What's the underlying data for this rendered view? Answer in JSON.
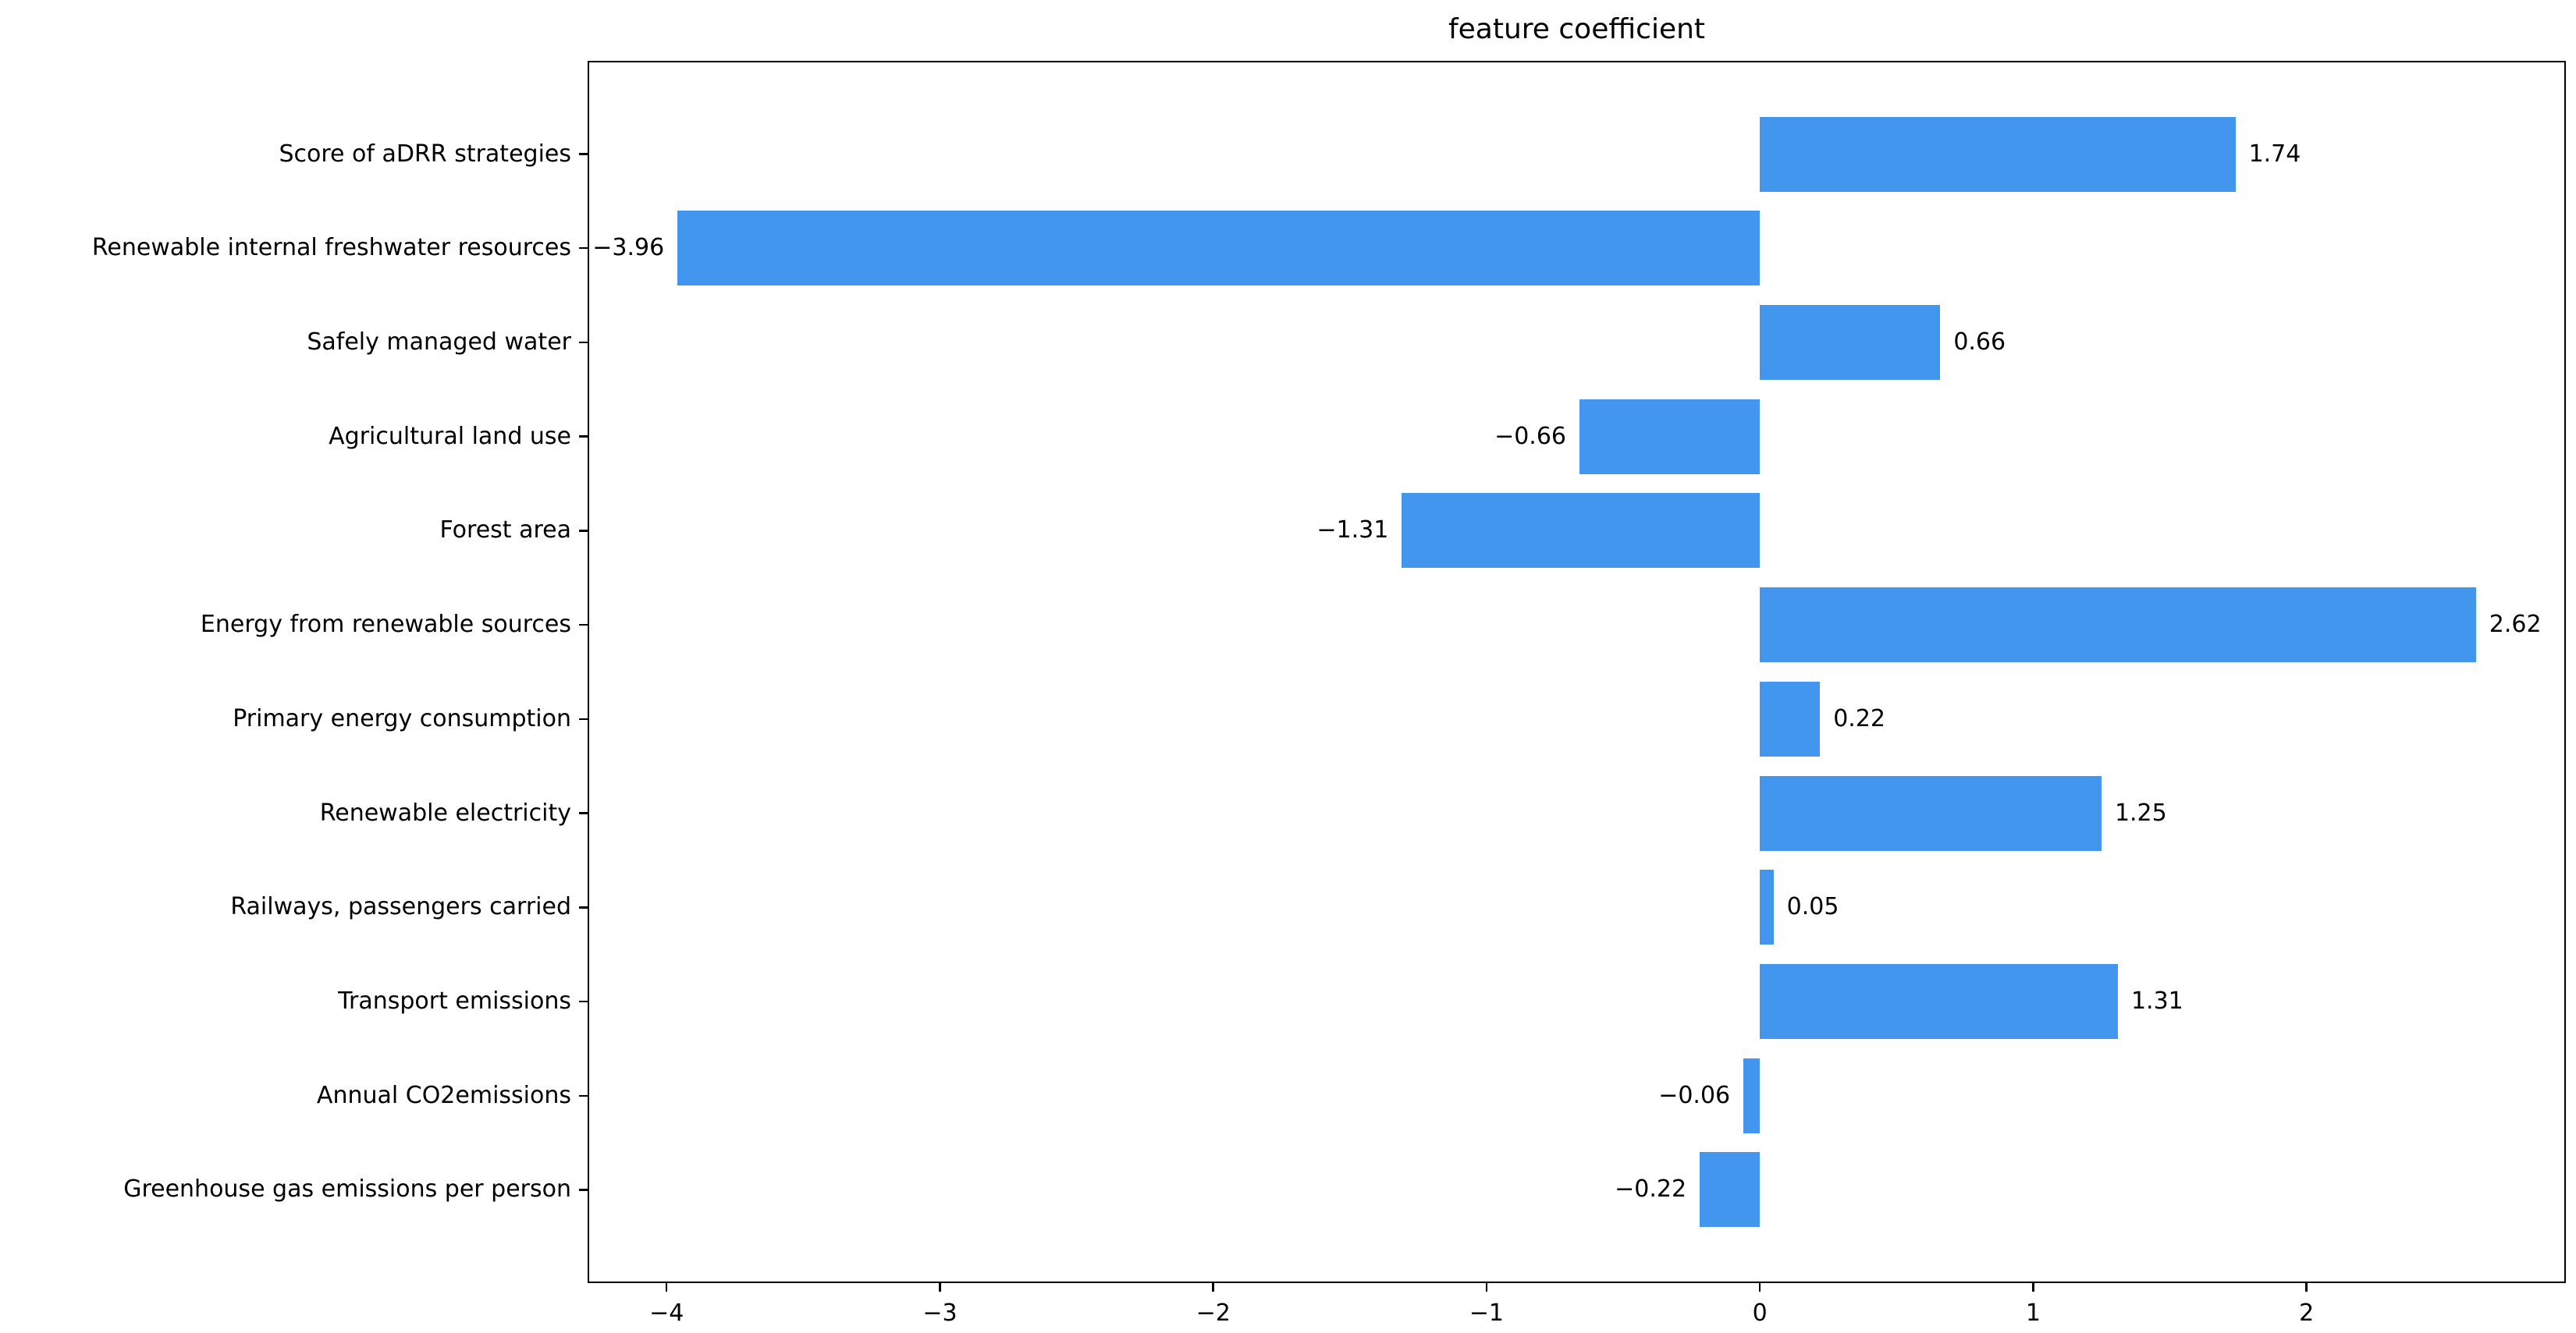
{
  "title": "feature coefficient",
  "chart_data": {
    "type": "bar",
    "orientation": "horizontal",
    "title": "feature coefficient",
    "categories": [
      "Score of aDRR strategies",
      "Renewable internal freshwater resources",
      "Safely managed water",
      "Agricultural land use",
      "Forest area",
      "Energy from renewable sources",
      "Primary energy consumption",
      "Renewable electricity",
      "Railways, passengers carried",
      "Transport emissions",
      "Annual CO2emissions",
      "Greenhouse gas emissions per person"
    ],
    "values": [
      1.74,
      -3.96,
      0.66,
      -0.66,
      -1.31,
      2.62,
      0.22,
      1.25,
      0.05,
      1.31,
      -0.06,
      -0.22
    ],
    "value_labels": [
      "1.74",
      "−3.96",
      "0.66",
      "−0.66",
      "−1.31",
      "2.62",
      "0.22",
      "1.25",
      "0.05",
      "1.31",
      "−0.06",
      "−0.22"
    ],
    "x_ticks": [
      -4,
      -3,
      -2,
      -1,
      0,
      1,
      2
    ],
    "x_tick_labels": [
      "−4",
      "−3",
      "−2",
      "−1",
      "0",
      "1",
      "2"
    ],
    "xlim": [
      -4.289,
      2.949
    ],
    "xlabel": "",
    "ylabel": "",
    "grid": false,
    "legend": null,
    "bar_color": "#4296ee",
    "axis_color": "#000000",
    "text_color": "#000000",
    "background_color": "#ffffff"
  }
}
